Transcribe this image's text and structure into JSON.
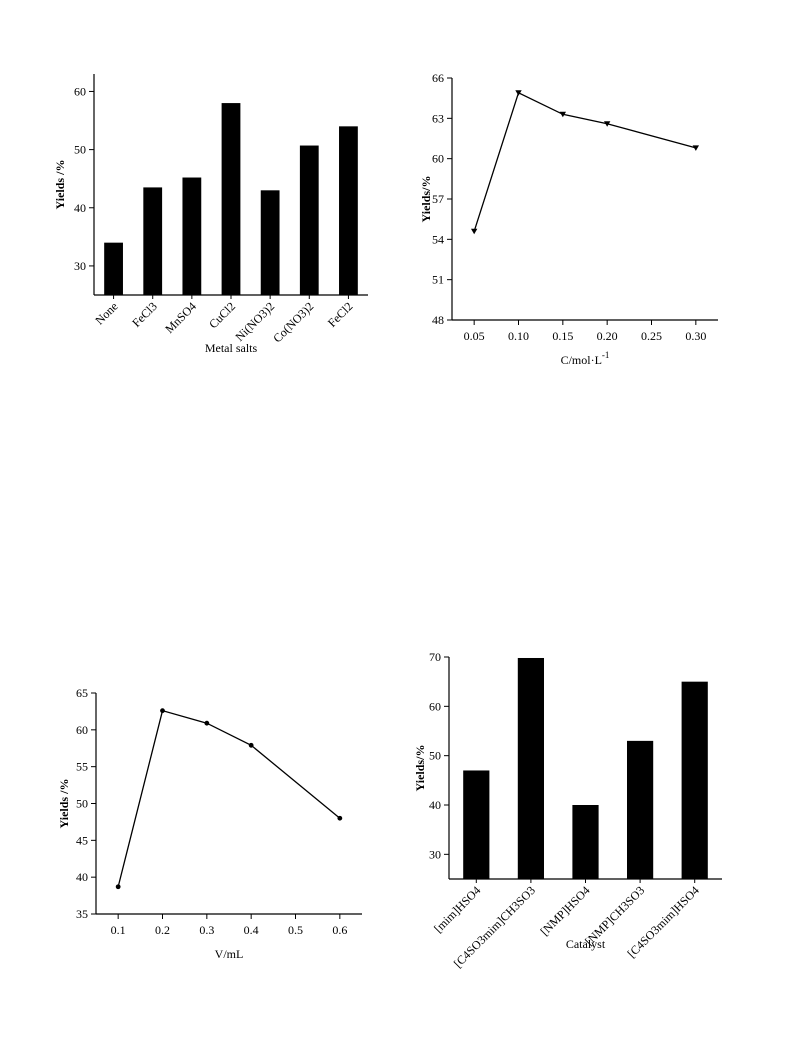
{
  "chart_data": [
    {
      "type": "bar",
      "title": "",
      "xlabel": "Metal salts",
      "ylabel": "Yields /%",
      "categories": [
        "None",
        "FeCl3",
        "MnSO4",
        "CuCl2",
        "Ni(NO3)2",
        "Co(NO3)2",
        "FeCl2"
      ],
      "values": [
        34,
        43.5,
        45.2,
        58,
        43,
        50.7,
        54
      ],
      "ylim": [
        25,
        63
      ],
      "yticks": [
        "30",
        "40",
        "50",
        "60"
      ],
      "grid": false,
      "bar_color": "#000000"
    },
    {
      "type": "line",
      "title": "",
      "xlabel": "C/mol·L",
      "xlabel_sup": "-1",
      "ylabel": "Yields/%",
      "x": [
        0.05,
        0.1,
        0.15,
        0.2,
        0.3
      ],
      "y": [
        54.6,
        64.9,
        63.3,
        62.6,
        60.8
      ],
      "xlim": [
        0.025,
        0.325
      ],
      "ylim": [
        48,
        66
      ],
      "xticks": [
        "0.05",
        "0.10",
        "0.15",
        "0.20",
        "0.25",
        "0.30"
      ],
      "yticks": [
        "48",
        "51",
        "54",
        "57",
        "60",
        "63",
        "66"
      ],
      "marker": "triangle-down",
      "grid": false
    },
    {
      "type": "line",
      "title": "",
      "xlabel": "V/mL",
      "ylabel": "Yields /%",
      "x": [
        0.1,
        0.2,
        0.3,
        0.4,
        0.6
      ],
      "y": [
        38.7,
        62.6,
        60.9,
        57.9,
        48
      ],
      "xlim": [
        0.05,
        0.65
      ],
      "ylim": [
        35,
        65
      ],
      "xticks": [
        "0.1",
        "0.2",
        "0.3",
        "0.4",
        "0.5",
        "0.6"
      ],
      "yticks": [
        "35",
        "40",
        "45",
        "50",
        "55",
        "60",
        "65"
      ],
      "marker": "circle",
      "grid": false
    },
    {
      "type": "bar",
      "title": "",
      "xlabel": "Catalyst",
      "ylabel": "Yields/%",
      "categories": [
        "[mim]HSO4",
        "[C4SO3mim]CH3SO3",
        "[NMP]HSO4",
        "[NMP]CH3SO3",
        "[C4SO3mim]HSO4"
      ],
      "values": [
        47,
        69.8,
        40,
        53,
        65
      ],
      "ylim": [
        25,
        70
      ],
      "yticks": [
        "30",
        "40",
        "50",
        "60",
        "70"
      ],
      "grid": false,
      "bar_color": "#000000"
    }
  ]
}
